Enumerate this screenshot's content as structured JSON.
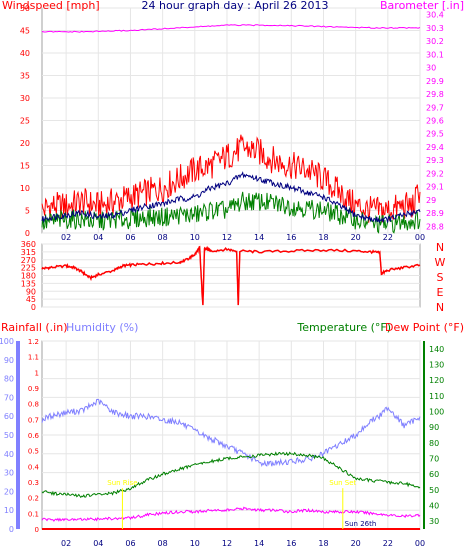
{
  "chart_data": [
    {
      "type": "line",
      "title": "24 hour graph day : April 26 2013",
      "ylabel_left": "Windspeed [mph]",
      "ylabel_right": "Barometer [.in]",
      "x_ticks": [
        "02",
        "04",
        "06",
        "08",
        "10",
        "12",
        "14",
        "16",
        "18",
        "20",
        "22",
        "00"
      ],
      "x_range_hours": [
        0.5,
        24
      ],
      "ylim_left": [
        0,
        50
      ],
      "y_ticks_left": [
        0,
        5,
        10,
        15,
        20,
        25,
        30,
        35,
        40,
        45,
        50
      ],
      "ylim_right": [
        28.75,
        30.45
      ],
      "y_ticks_right": [
        "28.8",
        "28.9",
        "29",
        "29.1",
        "29.2",
        "29.3",
        "29.4",
        "29.5",
        "29.6",
        "29.7",
        "29.8",
        "29.9",
        "30",
        "30.1",
        "30.2",
        "30.3",
        "30.4"
      ],
      "grid": true,
      "colors": {
        "gust": "#ff0000",
        "average": "#000080",
        "speed": "#008000",
        "barometer": "#ff00ff",
        "axes": "#ffffff"
      },
      "series": [
        {
          "key": "gust",
          "axis": "left",
          "points": [
            [
              0.5,
              5
            ],
            [
              1,
              6
            ],
            [
              2,
              6
            ],
            [
              3,
              7
            ],
            [
              4,
              6
            ],
            [
              5,
              7
            ],
            [
              6,
              8
            ],
            [
              7,
              9
            ],
            [
              8,
              10
            ],
            [
              9,
              12
            ],
            [
              10,
              14
            ],
            [
              11,
              15
            ],
            [
              12,
              17
            ],
            [
              13,
              19
            ],
            [
              14,
              18
            ],
            [
              15,
              16
            ],
            [
              16,
              15
            ],
            [
              17,
              14
            ],
            [
              18,
              12
            ],
            [
              19,
              9
            ],
            [
              20,
              6
            ],
            [
              21,
              5
            ],
            [
              22,
              5
            ],
            [
              23,
              6
            ],
            [
              23.6,
              6
            ],
            [
              24,
              10
            ]
          ]
        },
        {
          "key": "average",
          "axis": "left",
          "points": [
            [
              0.5,
              3
            ],
            [
              1,
              3.5
            ],
            [
              2,
              4
            ],
            [
              3,
              4.5
            ],
            [
              4,
              3.5
            ],
            [
              5,
              4
            ],
            [
              6,
              5
            ],
            [
              7,
              6
            ],
            [
              8,
              6.5
            ],
            [
              9,
              7.5
            ],
            [
              10,
              8
            ],
            [
              11,
              10
            ],
            [
              12,
              11
            ],
            [
              13,
              13
            ],
            [
              14,
              12
            ],
            [
              15,
              11
            ],
            [
              16,
              10
            ],
            [
              17,
              9
            ],
            [
              18,
              8
            ],
            [
              19,
              6
            ],
            [
              20,
              4
            ],
            [
              21,
              3
            ],
            [
              22,
              3
            ],
            [
              23,
              4
            ],
            [
              24,
              5
            ]
          ]
        },
        {
          "key": "speed",
          "axis": "left",
          "points": [
            [
              0.5,
              2
            ],
            [
              1,
              2.5
            ],
            [
              2,
              3
            ],
            [
              3,
              3
            ],
            [
              4,
              2.5
            ],
            [
              5,
              3
            ],
            [
              6,
              3
            ],
            [
              7,
              3.5
            ],
            [
              8,
              3.5
            ],
            [
              9,
              4
            ],
            [
              10,
              4
            ],
            [
              11,
              5
            ],
            [
              12,
              5
            ],
            [
              13,
              7
            ],
            [
              14,
              7
            ],
            [
              15,
              6.5
            ],
            [
              16,
              6
            ],
            [
              17,
              5.5
            ],
            [
              18,
              5
            ],
            [
              19,
              4
            ],
            [
              20,
              3
            ],
            [
              21,
              2
            ],
            [
              22,
              2
            ],
            [
              23,
              2.5
            ],
            [
              24,
              3
            ]
          ]
        },
        {
          "key": "barometer",
          "axis": "right",
          "points": [
            [
              0.5,
              30.27
            ],
            [
              3,
              30.27
            ],
            [
              6,
              30.28
            ],
            [
              9,
              30.3
            ],
            [
              12,
              30.32
            ],
            [
              15,
              30.32
            ],
            [
              18,
              30.31
            ],
            [
              21,
              30.3
            ],
            [
              24,
              30.3
            ]
          ]
        }
      ]
    },
    {
      "type": "scatter",
      "title": "",
      "ylabel_left": "",
      "ylabel_right_directions": [
        "N",
        "W",
        "S",
        "E",
        "N"
      ],
      "ylim": [
        0,
        360
      ],
      "y_ticks": [
        0,
        45,
        90,
        135,
        180,
        225,
        270,
        315,
        360
      ],
      "x_range_hours": [
        0.5,
        24
      ],
      "grid": true,
      "color": "#ff0000",
      "points": [
        [
          0.5,
          220
        ],
        [
          1,
          225
        ],
        [
          2,
          235
        ],
        [
          2.5,
          225
        ],
        [
          3,
          200
        ],
        [
          3.5,
          165
        ],
        [
          4,
          185
        ],
        [
          5,
          210
        ],
        [
          5.5,
          235
        ],
        [
          6,
          240
        ],
        [
          7,
          245
        ],
        [
          8,
          250
        ],
        [
          9,
          255
        ],
        [
          9.5,
          270
        ],
        [
          10,
          300
        ],
        [
          10.3,
          340
        ],
        [
          10.5,
          5
        ],
        [
          10.6,
          330
        ],
        [
          10.8,
          330
        ],
        [
          11,
          320
        ],
        [
          12,
          330
        ],
        [
          12.6,
          320
        ],
        [
          12.7,
          5
        ],
        [
          12.8,
          320
        ],
        [
          14,
          315
        ],
        [
          16,
          320
        ],
        [
          18,
          325
        ],
        [
          20,
          320
        ],
        [
          21,
          315
        ],
        [
          21.5,
          310
        ],
        [
          21.6,
          190
        ],
        [
          22,
          210
        ],
        [
          23,
          225
        ],
        [
          24,
          240
        ]
      ]
    },
    {
      "type": "line",
      "title": "",
      "ylabel_left_rain": "Rainfall (.in)",
      "ylabel_left_humidity": "Humidity (%)",
      "ylabel_right_temp": "Temperature (°F)",
      "ylabel_right_dew": "Dew Point (°F)",
      "x_ticks": [
        "02",
        "04",
        "06",
        "08",
        "10",
        "12",
        "14",
        "16",
        "18",
        "20",
        "22",
        "00"
      ],
      "x_range_hours": [
        0.5,
        24
      ],
      "humidity_ticks": [
        0,
        10,
        20,
        30,
        40,
        50,
        60,
        70,
        80,
        90,
        100
      ],
      "rain_ticks": [
        "0",
        "0.1",
        "0.2",
        "0.3",
        "0.4",
        "0.5",
        "0.6",
        "0.7",
        "0.8",
        "0.9",
        "1",
        "1.1",
        "1.2"
      ],
      "temp_ticks": [
        30,
        40,
        50,
        60,
        70,
        80,
        90,
        100,
        110,
        120,
        130,
        140
      ],
      "ylim_humidity": [
        0,
        100
      ],
      "ylim_rain": [
        0,
        1.2
      ],
      "ylim_temp": [
        25,
        145
      ],
      "grid": true,
      "colors": {
        "humidity": "#8080ff",
        "temperature": "#008000",
        "dew_point": "#ff00ff",
        "rainfall": "#ff0000",
        "sun": "#ffff00"
      },
      "annotations": [
        {
          "text": "Sun Rise",
          "hour": 5.5,
          "temp": 53
        },
        {
          "text": "Sun Set",
          "hour": 19.2,
          "temp": 53
        },
        {
          "text": "Sun 26th",
          "hour": 20.3,
          "temp": 27
        }
      ],
      "series": [
        {
          "key": "humidity",
          "axis": "humidity",
          "points": [
            [
              0.5,
              58
            ],
            [
              1,
              60
            ],
            [
              2,
              62
            ],
            [
              3,
              63
            ],
            [
              4,
              68
            ],
            [
              5,
              62
            ],
            [
              6,
              60
            ],
            [
              7,
              60
            ],
            [
              8,
              58
            ],
            [
              9,
              57
            ],
            [
              10,
              52
            ],
            [
              11,
              48
            ],
            [
              12,
              44
            ],
            [
              13,
              40
            ],
            [
              13.5,
              38
            ],
            [
              14,
              35
            ],
            [
              15,
              35
            ],
            [
              16,
              36
            ],
            [
              17,
              37
            ],
            [
              18,
              40
            ],
            [
              19,
              45
            ],
            [
              20,
              50
            ],
            [
              21,
              58
            ],
            [
              21.5,
              60
            ],
            [
              22,
              65
            ],
            [
              23,
              55
            ],
            [
              23.5,
              57
            ],
            [
              24,
              60
            ]
          ]
        },
        {
          "key": "temperature",
          "axis": "temp",
          "points": [
            [
              0.5,
              49
            ],
            [
              1,
              48
            ],
            [
              2,
              47
            ],
            [
              3,
              46
            ],
            [
              4,
              47
            ],
            [
              5,
              48
            ],
            [
              6,
              51
            ],
            [
              7,
              56
            ],
            [
              8,
              60
            ],
            [
              9,
              63
            ],
            [
              10,
              66
            ],
            [
              11,
              68
            ],
            [
              12,
              70
            ],
            [
              13,
              71
            ],
            [
              14,
              72
            ],
            [
              15,
              73
            ],
            [
              16,
              73
            ],
            [
              17,
              72
            ],
            [
              18,
              70
            ],
            [
              19,
              64
            ],
            [
              20,
              57
            ],
            [
              21,
              56
            ],
            [
              22,
              55
            ],
            [
              23,
              54
            ],
            [
              24,
              52
            ]
          ]
        },
        {
          "key": "dew_point",
          "axis": "temp",
          "points": [
            [
              0.5,
              31
            ],
            [
              3,
              31
            ],
            [
              6,
              32
            ],
            [
              7,
              34
            ],
            [
              8,
              35
            ],
            [
              9,
              36
            ],
            [
              10,
              36
            ],
            [
              11,
              37
            ],
            [
              12,
              37
            ],
            [
              13,
              38
            ],
            [
              14,
              37
            ],
            [
              15,
              37
            ],
            [
              16,
              36
            ],
            [
              17,
              37
            ],
            [
              18,
              36
            ],
            [
              19,
              36
            ],
            [
              20,
              36
            ],
            [
              21,
              35
            ],
            [
              22,
              34
            ],
            [
              23,
              33
            ],
            [
              24,
              34
            ]
          ]
        },
        {
          "key": "rainfall",
          "axis": "rain",
          "points": [
            [
              0.5,
              0
            ],
            [
              24,
              0
            ]
          ]
        }
      ]
    }
  ]
}
